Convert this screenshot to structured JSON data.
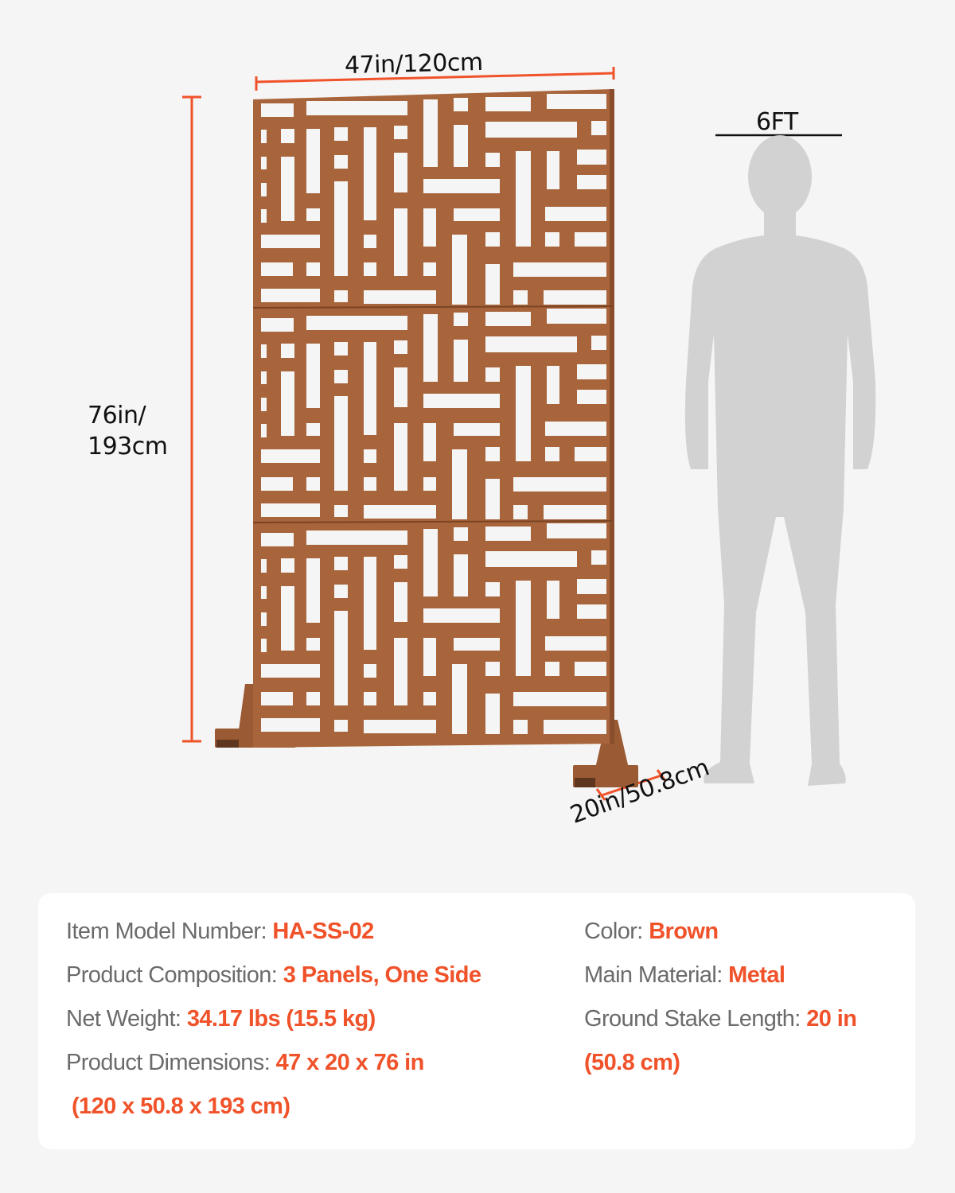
{
  "dimensions": {
    "width": "47in/120cm",
    "height_line1": "76in/",
    "height_line2": "193cm",
    "depth": "20in/50.8cm",
    "person_height": "6FT"
  },
  "colors": {
    "accent": "#f0522a",
    "panel": "#a8643a",
    "silhouette": "#d2d2d2",
    "label_text": "#6b6b6b"
  },
  "specs": {
    "model": {
      "label": "Item Model Number: ",
      "value": "HA-SS-02"
    },
    "composition": {
      "label": "Product Composition: ",
      "value": "3 Panels, One Side"
    },
    "weight": {
      "label": "Net Weight: ",
      "value": "34.17 lbs (15.5 kg)"
    },
    "dimensions": {
      "label": "Product Dimensions: ",
      "value": "47 x 20 x 76 in",
      "value_cont": "(120 x 50.8 x 193 cm)"
    },
    "color": {
      "label": "Color: ",
      "value": "Brown"
    },
    "material": {
      "label": "Main Material: ",
      "value": "Metal"
    },
    "stake": {
      "label": "Ground Stake Length: ",
      "value": "20 in",
      "value_cont": "(50.8 cm)"
    }
  }
}
